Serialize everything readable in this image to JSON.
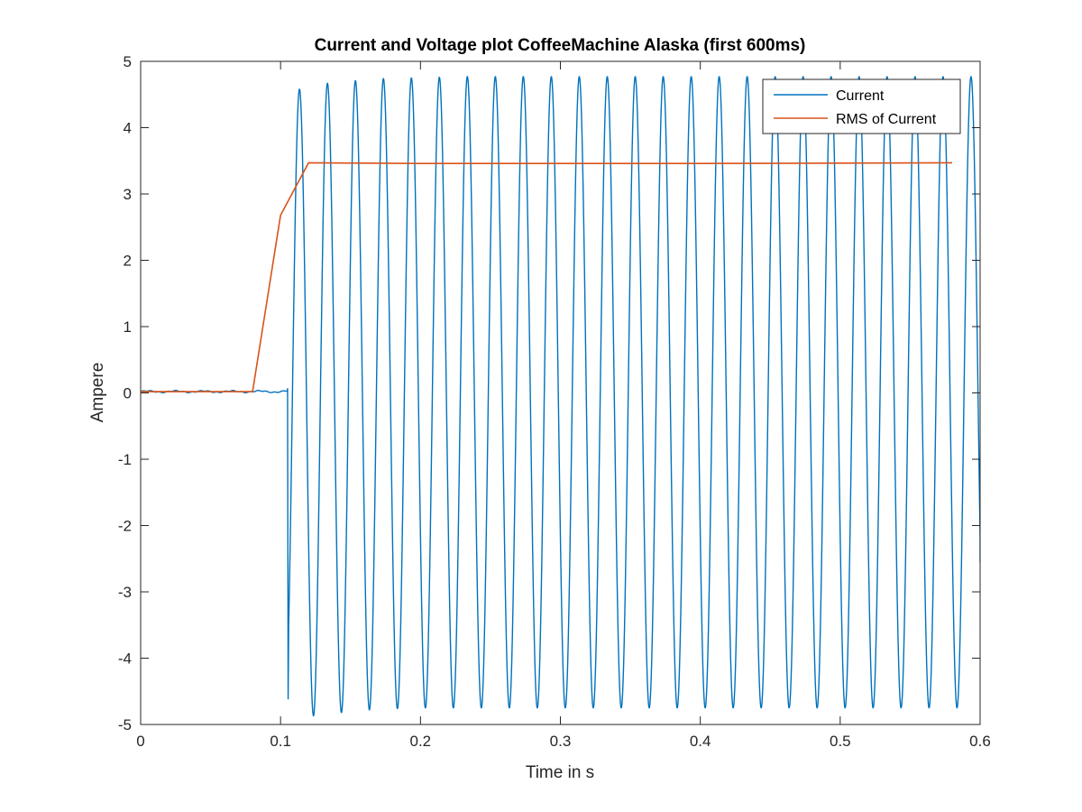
{
  "chart_data": {
    "type": "line",
    "title": "Current and Voltage plot CoffeeMachine Alaska (first 600ms)",
    "xlabel": "Time in s",
    "ylabel": "Ampere",
    "xlim": [
      0,
      0.6
    ],
    "ylim": [
      -5,
      5
    ],
    "xticks": [
      0,
      0.1,
      0.2,
      0.3,
      0.4,
      0.5,
      0.6
    ],
    "xtick_labels": [
      "0",
      "0.1",
      "0.2",
      "0.3",
      "0.4",
      "0.5",
      "0.6"
    ],
    "yticks": [
      5,
      4,
      3,
      2,
      1,
      0,
      -1,
      -2,
      -3,
      -4,
      -5
    ],
    "ytick_labels": [
      "5",
      "4",
      "3",
      "2",
      "1",
      "0",
      "-1",
      "-2",
      "-3",
      "-4",
      "-5"
    ],
    "grid": false,
    "legend": "top-right",
    "series": [
      {
        "name": "Current",
        "color": "#0072bd",
        "kind": "sinusoid",
        "frequency_hz": 50,
        "pre_onset_level": 0.02,
        "onset_time_s": 0.105,
        "first_trough": -4.62,
        "peaks": [
          [
            0.1135,
            4.58
          ],
          [
            0.1335,
            4.67
          ],
          [
            0.1535,
            4.71
          ],
          [
            0.1735,
            4.74
          ],
          [
            0.1935,
            4.75
          ],
          [
            0.2135,
            4.76
          ],
          [
            0.2335,
            4.77
          ],
          [
            0.2535,
            4.77
          ],
          [
            0.5935,
            4.77
          ]
        ],
        "troughs": [
          [
            0.1035,
            -4.62
          ],
          [
            0.1235,
            -4.87
          ],
          [
            0.1435,
            -4.82
          ],
          [
            0.1635,
            -4.78
          ],
          [
            0.1835,
            -4.76
          ],
          [
            0.2035,
            -4.75
          ],
          [
            0.2235,
            -4.75
          ],
          [
            0.5835,
            -4.75
          ]
        ],
        "end_point": [
          0.6,
          -2.55
        ]
      },
      {
        "name": "RMS of Current",
        "color": "#d95319",
        "kind": "polyline",
        "x": [
          0,
          0.08,
          0.1,
          0.12,
          0.2,
          0.3,
          0.4,
          0.5,
          0.58
        ],
        "y": [
          0.02,
          0.02,
          2.68,
          3.47,
          3.46,
          3.46,
          3.46,
          3.465,
          3.47
        ]
      }
    ]
  }
}
